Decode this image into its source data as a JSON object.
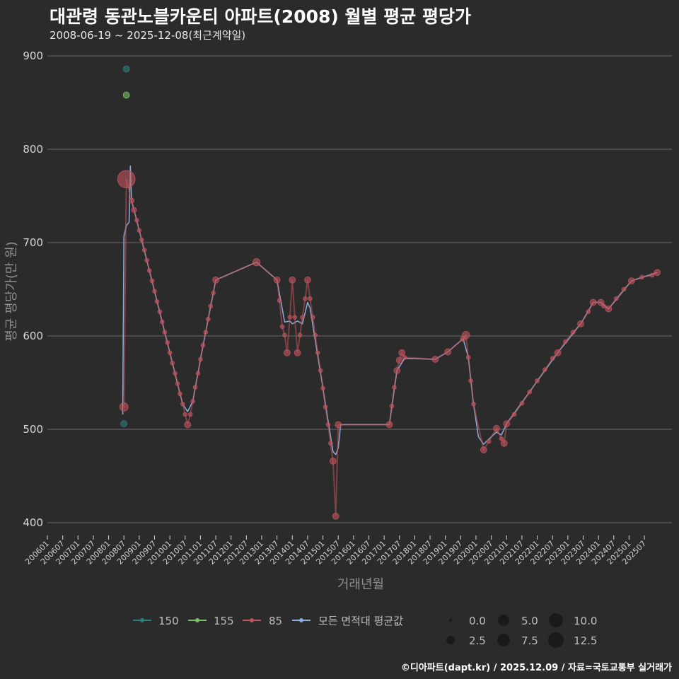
{
  "title": "대관령 동관노블카운티 아파트(2008) 월별 평균 평당가",
  "subtitle": "2008-06-19 ~ 2025-12-08(최근계약일)",
  "caption": "©디아파트(dapt.kr) / 2025.12.09 / 자료=국토교통부 실거래가",
  "colors": {
    "background": "#2b2b2b",
    "grid": "#6a6a6a",
    "s150": "#2a7f7a",
    "s155": "#7bbf6a",
    "s85": "#c0545e",
    "avg": "#8aaed8"
  },
  "chart_data": {
    "type": "scatter",
    "xlabel": "거래년월",
    "ylabel": "평균 평당가(만 원)",
    "ylim": [
      400,
      900
    ],
    "yticks": [
      400,
      500,
      600,
      700,
      800,
      900
    ],
    "xrange": [
      2006.0,
      2026.4
    ],
    "xticks": [
      "200601",
      "200607",
      "200701",
      "200707",
      "200801",
      "200807",
      "200901",
      "200907",
      "201001",
      "201007",
      "201101",
      "201107",
      "201201",
      "201207",
      "201301",
      "201307",
      "201401",
      "201407",
      "201501",
      "201507",
      "201601",
      "201607",
      "201701",
      "201707",
      "201801",
      "201807",
      "201901",
      "201907",
      "202001",
      "202007",
      "202101",
      "202107",
      "202201",
      "202207",
      "202301",
      "202307",
      "202401",
      "202407",
      "202501",
      "202507"
    ],
    "size_legend": {
      "values": [
        "0.0",
        "2.5",
        "5.0",
        "7.5",
        "10.0",
        "12.5"
      ]
    },
    "series": [
      {
        "name": "150",
        "color": "#2a7f7a",
        "points": [
          [
            2008.5,
            506,
            3
          ],
          [
            2008.58,
            886,
            3
          ]
        ]
      },
      {
        "name": "155",
        "color": "#7bbf6a",
        "points": [
          [
            2008.58,
            858,
            3
          ]
        ]
      },
      {
        "name": "85",
        "color": "#c0545e",
        "points": [
          [
            2008.5,
            524,
            5
          ],
          [
            2008.58,
            768,
            13
          ],
          [
            2008.75,
            745,
            2
          ],
          [
            2008.83,
            735,
            2
          ],
          [
            2008.92,
            724,
            1
          ],
          [
            2009.0,
            713,
            1
          ],
          [
            2009.08,
            703,
            1
          ],
          [
            2009.17,
            692,
            1
          ],
          [
            2009.25,
            681,
            1
          ],
          [
            2009.33,
            670,
            1
          ],
          [
            2009.42,
            659,
            1
          ],
          [
            2009.5,
            648,
            1
          ],
          [
            2009.58,
            637,
            1
          ],
          [
            2009.67,
            626,
            1
          ],
          [
            2009.75,
            615,
            1
          ],
          [
            2009.83,
            604,
            1
          ],
          [
            2009.92,
            593,
            1
          ],
          [
            2010.0,
            582,
            1
          ],
          [
            2010.08,
            571,
            1
          ],
          [
            2010.17,
            560,
            1
          ],
          [
            2010.25,
            549,
            1
          ],
          [
            2010.33,
            538,
            1
          ],
          [
            2010.42,
            527,
            1
          ],
          [
            2010.5,
            516,
            1
          ],
          [
            2010.58,
            505,
            3
          ],
          [
            2010.67,
            516,
            1
          ],
          [
            2010.75,
            530,
            1
          ],
          [
            2010.83,
            545,
            1
          ],
          [
            2010.92,
            560,
            1
          ],
          [
            2011.0,
            575,
            1
          ],
          [
            2011.08,
            590,
            1
          ],
          [
            2011.17,
            604,
            1
          ],
          [
            2011.25,
            618,
            1
          ],
          [
            2011.33,
            632,
            1
          ],
          [
            2011.42,
            646,
            1
          ],
          [
            2011.5,
            660,
            3
          ],
          [
            2012.83,
            679,
            4
          ],
          [
            2013.5,
            660,
            3
          ],
          [
            2013.58,
            638,
            1
          ],
          [
            2013.67,
            610,
            1
          ],
          [
            2013.75,
            601,
            1
          ],
          [
            2013.83,
            582,
            3
          ],
          [
            2013.92,
            620,
            1
          ],
          [
            2014.0,
            660,
            3
          ],
          [
            2014.08,
            620,
            1
          ],
          [
            2014.17,
            582,
            3
          ],
          [
            2014.25,
            601,
            1
          ],
          [
            2014.33,
            620,
            1
          ],
          [
            2014.42,
            640,
            1
          ],
          [
            2014.5,
            660,
            3
          ],
          [
            2014.58,
            640,
            1
          ],
          [
            2014.67,
            620,
            1
          ],
          [
            2014.75,
            601,
            1
          ],
          [
            2014.83,
            582,
            1
          ],
          [
            2014.92,
            563,
            1
          ],
          [
            2015.0,
            544,
            1
          ],
          [
            2015.08,
            524,
            1
          ],
          [
            2015.17,
            505,
            1
          ],
          [
            2015.25,
            485,
            1
          ],
          [
            2015.33,
            466,
            3
          ],
          [
            2015.42,
            407,
            3
          ],
          [
            2015.5,
            505,
            3
          ],
          [
            2017.17,
            505,
            3
          ],
          [
            2017.25,
            525,
            1
          ],
          [
            2017.33,
            545,
            1
          ],
          [
            2017.42,
            563,
            3
          ],
          [
            2017.5,
            574,
            3
          ],
          [
            2017.58,
            582,
            3
          ],
          [
            2017.67,
            577,
            1
          ],
          [
            2018.67,
            575,
            3
          ],
          [
            2019.08,
            583,
            3
          ],
          [
            2019.58,
            597,
            2
          ],
          [
            2019.67,
            601,
            4
          ],
          [
            2019.75,
            577,
            1
          ],
          [
            2019.83,
            552,
            1
          ],
          [
            2019.92,
            527,
            1
          ],
          [
            2020.25,
            478,
            3
          ],
          [
            2020.42,
            487,
            1
          ],
          [
            2020.67,
            501,
            3
          ],
          [
            2020.83,
            490,
            1
          ],
          [
            2020.92,
            485,
            3
          ],
          [
            2021.0,
            506,
            3
          ],
          [
            2021.25,
            516,
            1
          ],
          [
            2021.5,
            528,
            1
          ],
          [
            2021.75,
            540,
            1
          ],
          [
            2022.0,
            552,
            1
          ],
          [
            2022.25,
            564,
            1
          ],
          [
            2022.5,
            576,
            1
          ],
          [
            2022.67,
            582,
            3
          ],
          [
            2022.92,
            594,
            1
          ],
          [
            2023.17,
            604,
            1
          ],
          [
            2023.42,
            613,
            3
          ],
          [
            2023.67,
            626,
            1
          ],
          [
            2023.83,
            636,
            3
          ],
          [
            2024.08,
            636,
            3
          ],
          [
            2024.17,
            632,
            1
          ],
          [
            2024.33,
            629,
            3
          ],
          [
            2024.58,
            640,
            1
          ],
          [
            2024.83,
            650,
            1
          ],
          [
            2025.08,
            659,
            3
          ],
          [
            2025.42,
            663,
            1
          ],
          [
            2025.75,
            665,
            1
          ],
          [
            2025.92,
            668,
            3
          ]
        ]
      }
    ],
    "average_line": {
      "name": "모든 면적대 평균값",
      "color": "#8aaed8",
      "points": [
        [
          2008.46,
          516
        ],
        [
          2008.5,
          707
        ],
        [
          2008.58,
          718
        ],
        [
          2008.67,
          722
        ],
        [
          2008.71,
          782
        ],
        [
          2008.75,
          745
        ],
        [
          2009.0,
          713
        ],
        [
          2009.5,
          648
        ],
        [
          2010.0,
          582
        ],
        [
          2010.42,
          527
        ],
        [
          2010.58,
          519
        ],
        [
          2010.75,
          530
        ],
        [
          2011.0,
          575
        ],
        [
          2011.5,
          660
        ],
        [
          2012.83,
          679
        ],
        [
          2013.5,
          660
        ],
        [
          2013.75,
          615
        ],
        [
          2013.92,
          616
        ],
        [
          2014.0,
          613
        ],
        [
          2014.17,
          616
        ],
        [
          2014.33,
          613
        ],
        [
          2014.5,
          636
        ],
        [
          2014.58,
          630
        ],
        [
          2015.0,
          544
        ],
        [
          2015.33,
          476
        ],
        [
          2015.42,
          473
        ],
        [
          2015.5,
          480
        ],
        [
          2015.58,
          505
        ],
        [
          2017.17,
          505
        ],
        [
          2017.42,
          563
        ],
        [
          2017.67,
          576
        ],
        [
          2018.67,
          575
        ],
        [
          2019.08,
          583
        ],
        [
          2019.58,
          597
        ],
        [
          2019.75,
          577
        ],
        [
          2019.92,
          527
        ],
        [
          2020.08,
          492
        ],
        [
          2020.25,
          484
        ],
        [
          2020.5,
          492
        ],
        [
          2020.67,
          497
        ],
        [
          2020.83,
          494
        ],
        [
          2021.0,
          506
        ],
        [
          2022.67,
          582
        ],
        [
          2023.42,
          613
        ],
        [
          2023.83,
          636
        ],
        [
          2024.08,
          636
        ],
        [
          2024.33,
          629
        ],
        [
          2025.08,
          659
        ],
        [
          2025.92,
          668
        ]
      ]
    }
  },
  "legend": {
    "items": [
      {
        "label": "150"
      },
      {
        "label": "155"
      },
      {
        "label": "85"
      },
      {
        "label": "모든 면적대 평균값"
      }
    ]
  }
}
